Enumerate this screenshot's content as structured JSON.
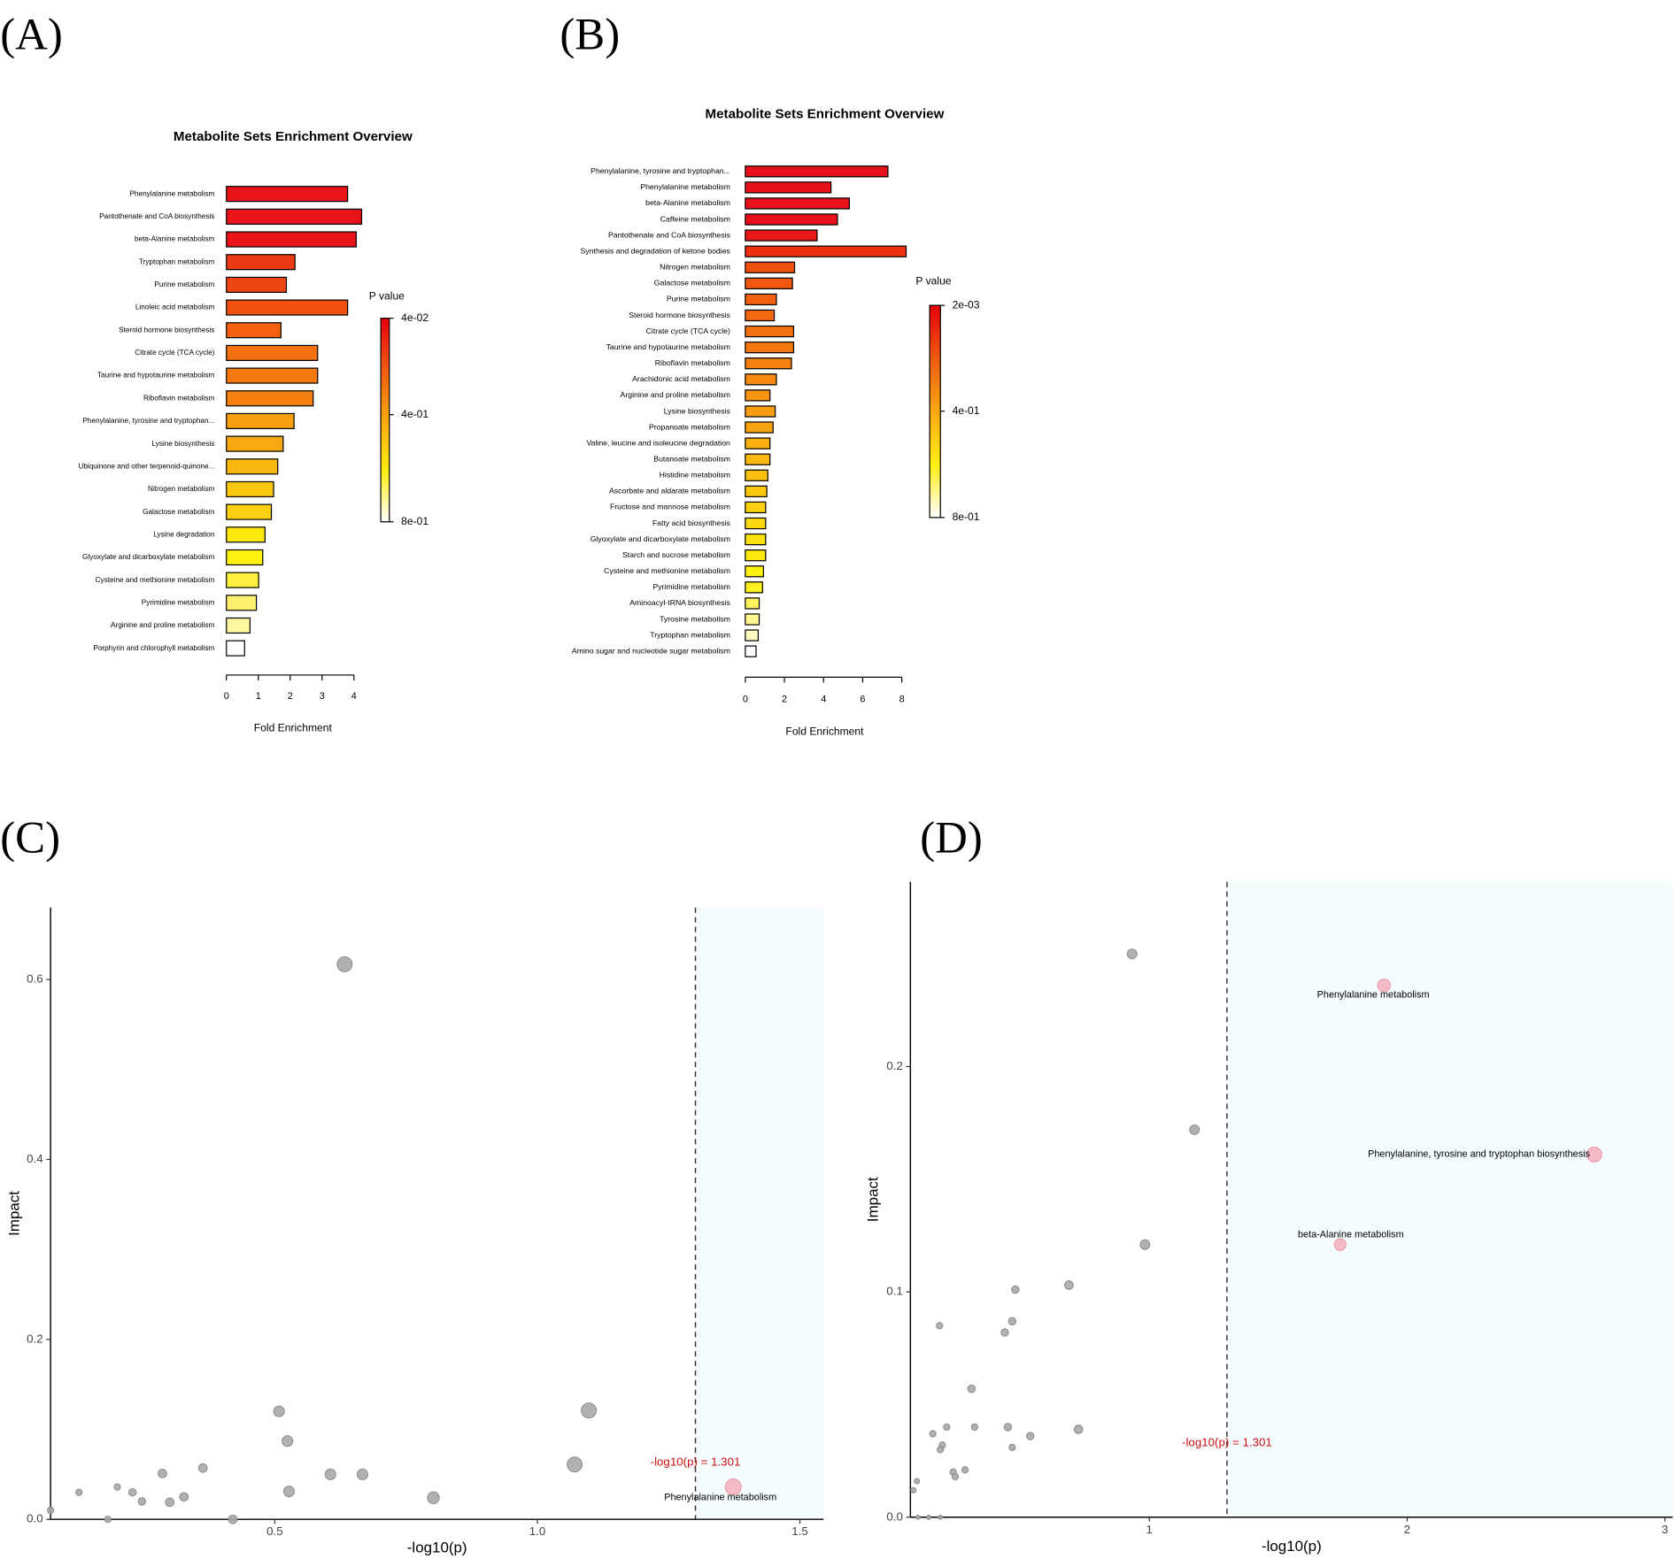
{
  "chart_data": [
    {
      "type": "bar",
      "panel_label": "(A)",
      "title": "Metabolite Sets Enrichment Overview",
      "x_label": "Fold Enrichment",
      "categories": [
        "Phenylalanine metabolism",
        "Pantothenate and CoA biosynthesis",
        "beta-Alanine metabolism",
        "Tryptophan metabolism",
        "Purine metabolism",
        "Linoleic acid metabolism",
        "Steroid hormone biosynthesis",
        "Citrate cycle (TCA cycle)",
        "Taurine and hypotaurine metabolism",
        "Riboflavin metabolism",
        "Phenylalanine, tyrosine and tryptophan...",
        "Lysine biosynthesis",
        "Ubiquinone and other terpenoid-quinone...",
        "Nitrogen metabolism",
        "Galactose metabolism",
        "Lysine degradation",
        "Glyoxylate and dicarboxylate metabolism",
        "Cysteine and methionine metabolism",
        "Pyrimidine metabolism",
        "Arginine and proline metabolism",
        "Porphyrin and chlorophyll metabolism"
      ],
      "values": [
        3.8,
        4.24,
        4.07,
        2.15,
        1.88,
        3.8,
        1.71,
        2.86,
        2.86,
        2.72,
        2.12,
        1.78,
        1.61,
        1.48,
        1.41,
        1.21,
        1.14,
        1.01,
        0.94,
        0.74,
        0.57
      ],
      "colors": [
        "#e8141a",
        "#e8141a",
        "#e8141a",
        "#ec3a14",
        "#ee4612",
        "#f05010",
        "#f26010",
        "#f47010",
        "#f47a10",
        "#f58010",
        "#f7a010",
        "#f8a810",
        "#f9b810",
        "#fbc810",
        "#fbd010",
        "#fde810",
        "#fef010",
        "#fff040",
        "#fff070",
        "#fff6a0",
        "#ffffff"
      ],
      "xlim": [
        0,
        4
      ],
      "xticks": [
        0,
        1,
        2,
        3,
        4
      ],
      "colorbar": {
        "title": "P value",
        "lim": [
          0.04,
          0.8
        ],
        "ticks": [
          {
            "value": 0.04,
            "label": "4e-02"
          },
          {
            "value": 0.4,
            "label": "4e-01"
          },
          {
            "value": 0.8,
            "label": "8e-01"
          }
        ],
        "colors": [
          "#e8000b",
          "#f05a10",
          "#f9a810",
          "#ffee10",
          "#ffffff"
        ]
      }
    },
    {
      "type": "bar",
      "panel_label": "(B)",
      "title": "Metabolite Sets Enrichment Overview",
      "x_label": "Fold Enrichment",
      "categories": [
        "Phenylalanine, tyrosine and tryptophan...",
        "Phenylalanine metabolism",
        "beta-Alanine metabolism",
        "Caffeine metabolism",
        "Pantothenate and CoA biosynthesis",
        "Synthesis and degradation of ketone bodies",
        "Nitrogen metabolism",
        "Galactose metabolism",
        "Purine metabolism",
        "Steroid hormone biosynthesis",
        "Citrate cycle (TCA cycle)",
        "Taurine and hypotaurine metabolism",
        "Riboflavin metabolism",
        "Arachidonic acid metabolism",
        "Arginine and proline metabolism",
        "Lysine biosynthesis",
        "Propanoate metabolism",
        "Valine, leucine and isoleucine degradation",
        "Butanoate metabolism",
        "Histidine metabolism",
        "Ascorbate and aldarate metabolism",
        "Fructose and mannose metabolism",
        "Fatty acid biosynthesis",
        "Glyoxylate and dicarboxylate metabolism",
        "Starch and sucrose metabolism",
        "Cysteine and methionine metabolism",
        "Pyrimidine metabolism",
        "Aminoacyl-tRNA biosynthesis",
        "Tyrosine metabolism",
        "Tryptophan metabolism",
        "Amino sugar and nucleotide sugar metabolism"
      ],
      "values": [
        7.29,
        4.38,
        5.32,
        4.71,
        3.67,
        8.22,
        2.52,
        2.41,
        1.59,
        1.48,
        2.47,
        2.47,
        2.36,
        1.59,
        1.26,
        1.53,
        1.42,
        1.26,
        1.26,
        1.15,
        1.1,
        1.04,
        1.04,
        1.04,
        1.04,
        0.93,
        0.88,
        0.71,
        0.71,
        0.66,
        0.55
      ],
      "colors": [
        "#e8101a",
        "#e8101a",
        "#e8101a",
        "#e8101a",
        "#e81a18",
        "#ee3010",
        "#f05010",
        "#f05810",
        "#f26010",
        "#f26810",
        "#f47010",
        "#f47810",
        "#f58010",
        "#f68a10",
        "#f79410",
        "#f89c10",
        "#f8a410",
        "#f9b010",
        "#f9b810",
        "#fac010",
        "#fbc810",
        "#fcd010",
        "#fcd810",
        "#fde010",
        "#fde810",
        "#fef010",
        "#fff020",
        "#fff460",
        "#fff890",
        "#fffbc0",
        "#ffffff"
      ],
      "xlim": [
        0,
        8
      ],
      "xticks": [
        0,
        2,
        4,
        6,
        8
      ],
      "colorbar": {
        "title": "P value",
        "lim": [
          0.002,
          0.8
        ],
        "ticks": [
          {
            "value": 0.002,
            "label": "2e-03"
          },
          {
            "value": 0.4,
            "label": "4e-01"
          },
          {
            "value": 0.8,
            "label": "8e-01"
          }
        ],
        "colors": [
          "#e8000b",
          "#f05a10",
          "#f9a810",
          "#ffee10",
          "#ffffff"
        ]
      }
    },
    {
      "type": "scatter",
      "panel_label": "(C)",
      "x_label": "-log10(p)",
      "y_label": "Impact",
      "x": [
        0.633,
        0.508,
        1.098,
        0.524,
        1.071,
        0.363,
        0.286,
        0.606,
        0.667,
        0.527,
        0.2,
        0.229,
        0.127,
        0.327,
        0.247,
        0.3,
        0.802,
        0.42,
        0.182,
        0.073,
        1.373
      ],
      "values": [
        0.617,
        0.12,
        0.121,
        0.087,
        0.061,
        0.057,
        0.051,
        0.05,
        0.05,
        0.031,
        0.036,
        0.03,
        0.03,
        0.025,
        0.02,
        0.019,
        0.024,
        0.0,
        0.0,
        0.01,
        0.036
      ],
      "sizes": [
        7,
        5,
        7,
        5,
        7,
        4,
        4,
        5,
        5,
        5,
        3,
        3.5,
        3,
        4,
        3.5,
        4,
        5.5,
        4,
        3,
        3,
        7.5
      ],
      "point_labels": [
        null,
        null,
        null,
        null,
        null,
        null,
        null,
        null,
        null,
        null,
        null,
        null,
        null,
        null,
        null,
        null,
        null,
        null,
        null,
        null,
        "Phenylalanine metabolism"
      ],
      "color": "#a9a9a9",
      "highlight_color": "#f4b3c0",
      "shade_color": "#f5fcfd",
      "threshold": 1.301,
      "threshold_label": "-log10(p) = 1.301",
      "xlim": [
        0.073,
        1.545
      ],
      "ylim": [
        0,
        0.68
      ],
      "xticks": [
        0.5,
        {
          "value": 1.0,
          "label": "1.0"
        },
        1.5
      ],
      "yticks": [
        {
          "value": 0,
          "label": "0.0"
        },
        0.2,
        0.4,
        0.6
      ]
    },
    {
      "type": "scatter",
      "panel_label": "(D)",
      "x_label": "-log10(p)",
      "y_label": "Impact",
      "x": [
        0.933,
        1.91,
        1.175,
        2.726,
        0.983,
        1.74,
        0.688,
        0.48,
        0.468,
        0.186,
        0.439,
        0.31,
        0.725,
        0.451,
        0.538,
        0.322,
        0.214,
        0.16,
        0.468,
        0.197,
        0.189,
        0.239,
        0.285,
        0.247,
        0.098,
        0.085,
        0.102,
        0.144,
        0.189
      ],
      "values": [
        0.25,
        0.236,
        0.172,
        0.161,
        0.121,
        0.121,
        0.103,
        0.101,
        0.087,
        0.085,
        0.082,
        0.057,
        0.039,
        0.04,
        0.036,
        0.04,
        0.04,
        0.037,
        0.031,
        0.032,
        0.03,
        0.02,
        0.021,
        0.018,
        0.016,
        0.012,
        0,
        0,
        0
      ],
      "sizes": [
        4.5,
        6,
        4.5,
        7,
        4.5,
        5.5,
        4,
        3.5,
        3.5,
        3,
        3.5,
        3.5,
        4,
        3.5,
        3.5,
        3,
        3,
        3,
        3,
        3,
        3,
        3,
        3,
        3,
        2.5,
        2.5,
        2,
        2,
        2
      ],
      "point_labels": [
        null,
        "Phenylalanine metabolism",
        null,
        "Phenylalanine, tyrosine and tryptophan biosynthesis",
        null,
        "beta-Alanine metabolism",
        null,
        null,
        null,
        null,
        null,
        null,
        null,
        null,
        null,
        null,
        null,
        null,
        null,
        null,
        null,
        null,
        null,
        null,
        null,
        null,
        null,
        null,
        null
      ],
      "color": "#a9a9a9",
      "highlight_color": "#f4b3c0",
      "shade_color": "#f5fcfd",
      "threshold": 1.301,
      "threshold_label": "-log10(p) = 1.301",
      "xlim": [
        0.073,
        3.03
      ],
      "ylim": [
        0,
        0.282
      ],
      "xticks": [
        1,
        2,
        3
      ],
      "yticks": [
        {
          "value": 0,
          "label": "0.0"
        },
        0.1,
        0.2
      ]
    }
  ]
}
